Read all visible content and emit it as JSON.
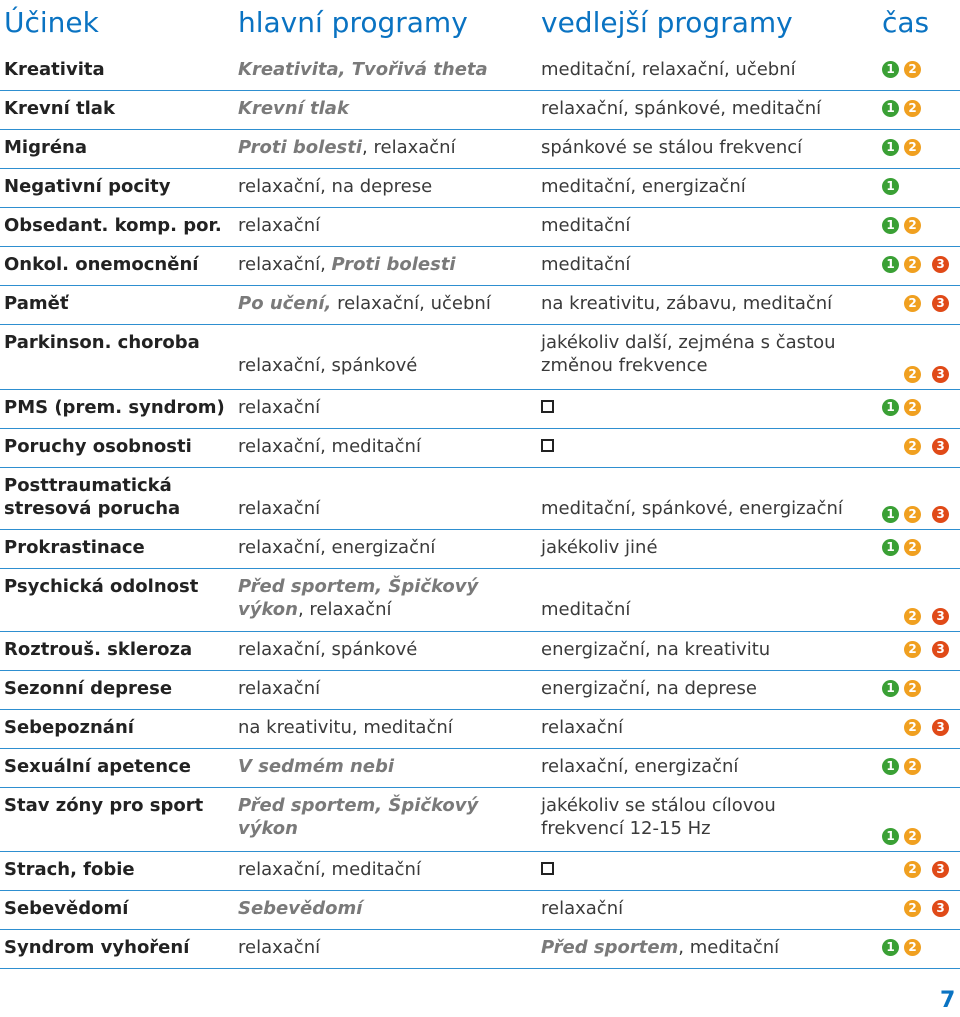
{
  "header": {
    "effect": "Účinek",
    "main": "hlavní programy",
    "side": "vedlejší programy",
    "time": "čas"
  },
  "badge_colors": {
    "1": "#3aa035",
    "2": "#f0a020",
    "3": "#e04a18"
  },
  "rows": [
    {
      "effect": [
        "Kreativita"
      ],
      "main": [
        [
          [
            "Kreativita, Tvořivá theta",
            "it"
          ]
        ]
      ],
      "side": [
        [
          [
            "meditační, relaxační, učební",
            "txt"
          ]
        ]
      ],
      "badges": [
        "1",
        "2"
      ]
    },
    {
      "effect": [
        "Krevní tlak"
      ],
      "main": [
        [
          [
            "Krevní tlak",
            "it"
          ]
        ]
      ],
      "side": [
        [
          [
            "relaxační, spánkové, meditační",
            "txt"
          ]
        ]
      ],
      "badges": [
        "1",
        "2"
      ]
    },
    {
      "effect": [
        "Migréna"
      ],
      "main": [
        [
          [
            "Proti bolesti",
            "it"
          ],
          [
            ", relaxační",
            "txt"
          ]
        ]
      ],
      "side": [
        [
          [
            "spánkové se stálou frekvencí",
            "txt"
          ]
        ]
      ],
      "badges": [
        "1",
        "2"
      ]
    },
    {
      "effect": [
        "Negativní pocity"
      ],
      "main": [
        [
          [
            "relaxační, na deprese",
            "txt"
          ]
        ]
      ],
      "side": [
        [
          [
            "meditační, energizační",
            "txt"
          ]
        ]
      ],
      "badges": [
        "1"
      ]
    },
    {
      "effect": [
        "Obsedant. komp. por."
      ],
      "main": [
        [
          [
            "relaxační",
            "txt"
          ]
        ]
      ],
      "side": [
        [
          [
            "meditační",
            "txt"
          ]
        ]
      ],
      "badges": [
        "1",
        "2"
      ]
    },
    {
      "effect": [
        "Onkol. onemocnění"
      ],
      "main": [
        [
          [
            "relaxační, ",
            "txt"
          ],
          [
            "Proti bolesti",
            "it"
          ]
        ]
      ],
      "side": [
        [
          [
            "meditační",
            "txt"
          ]
        ]
      ],
      "badges": [
        "1",
        "2",
        "3"
      ]
    },
    {
      "effect": [
        "Paměť"
      ],
      "main": [
        [
          [
            "Po učení,",
            "it"
          ],
          [
            " relaxační, učební",
            "txt"
          ]
        ]
      ],
      "side": [
        [
          [
            "na kreativitu, zábavu, meditační",
            "txt"
          ]
        ]
      ],
      "badges": [
        "2",
        "3"
      ]
    },
    {
      "effect": [
        "Parkinson. choroba"
      ],
      "main": [
        [
          [
            "relaxační, spánkové",
            "txt"
          ]
        ]
      ],
      "side": [
        [
          [
            "jakékoliv další, zejména s častou",
            "txt"
          ]
        ],
        [
          [
            "změnou frekvence",
            "txt"
          ]
        ]
      ],
      "badges": [
        "2",
        "3"
      ]
    },
    {
      "effect": [
        "PMS (prem. syndrom)"
      ],
      "main": [
        [
          [
            "relaxační",
            "txt"
          ]
        ]
      ],
      "side": [
        [
          [
            "☐",
            "box"
          ]
        ]
      ],
      "badges": [
        "1",
        "2"
      ]
    },
    {
      "effect": [
        "Poruchy osobnosti"
      ],
      "main": [
        [
          [
            "relaxační, meditační",
            "txt"
          ]
        ]
      ],
      "side": [
        [
          [
            "☐",
            "box"
          ]
        ]
      ],
      "badges": [
        "2",
        "3"
      ]
    },
    {
      "effect": [
        "Posttraumatická",
        "stresová porucha"
      ],
      "main": [
        [
          [
            "relaxační",
            "txt"
          ]
        ]
      ],
      "side": [
        [
          [
            "meditační, spánkové, energizační",
            "txt"
          ]
        ]
      ],
      "badges": [
        "1",
        "2",
        "3"
      ]
    },
    {
      "effect": [
        "Prokrastinace"
      ],
      "main": [
        [
          [
            "relaxační, energizační",
            "txt"
          ]
        ]
      ],
      "side": [
        [
          [
            "jakékoliv jiné",
            "txt"
          ]
        ]
      ],
      "badges": [
        "1",
        "2"
      ]
    },
    {
      "effect": [
        "Psychická odolnost"
      ],
      "main": [
        [
          [
            "Před sportem, Špičkový",
            "it"
          ]
        ],
        [
          [
            "výkon",
            "it"
          ],
          [
            ", relaxační",
            "txt"
          ]
        ]
      ],
      "side": [
        [
          [
            "meditační",
            "txt"
          ]
        ]
      ],
      "badges": [
        "2",
        "3"
      ]
    },
    {
      "effect": [
        "Roztrouš. skleroza"
      ],
      "main": [
        [
          [
            "relaxační, spánkové",
            "txt"
          ]
        ]
      ],
      "side": [
        [
          [
            "energizační, na kreativitu",
            "txt"
          ]
        ]
      ],
      "badges": [
        "2",
        "3"
      ]
    },
    {
      "effect": [
        "Sezonní deprese"
      ],
      "main": [
        [
          [
            "relaxační",
            "txt"
          ]
        ]
      ],
      "side": [
        [
          [
            "energizační, na deprese",
            "txt"
          ]
        ]
      ],
      "badges": [
        "1",
        "2"
      ]
    },
    {
      "effect": [
        "Sebepoznání"
      ],
      "main": [
        [
          [
            "na kreativitu, meditační",
            "txt"
          ]
        ]
      ],
      "side": [
        [
          [
            "relaxační",
            "txt"
          ]
        ]
      ],
      "badges": [
        "2",
        "3"
      ]
    },
    {
      "effect": [
        "Sexuální apetence"
      ],
      "main": [
        [
          [
            "V sedmém nebi",
            "it"
          ]
        ]
      ],
      "side": [
        [
          [
            "relaxační, energizační",
            "txt"
          ]
        ]
      ],
      "badges": [
        "1",
        "2"
      ]
    },
    {
      "effect": [
        "Stav zóny pro sport"
      ],
      "main": [
        [
          [
            "Před sportem, Špičkový",
            "it"
          ]
        ],
        [
          [
            "výkon",
            "it"
          ]
        ]
      ],
      "side": [
        [
          [
            "jakékoliv se stálou cílovou",
            "txt"
          ]
        ],
        [
          [
            "frekvencí 12-15 Hz",
            "txt"
          ]
        ]
      ],
      "badges": [
        "1",
        "2"
      ]
    },
    {
      "effect": [
        "Strach, fobie"
      ],
      "main": [
        [
          [
            "relaxační, meditační",
            "txt"
          ]
        ]
      ],
      "side": [
        [
          [
            "☐",
            "box"
          ]
        ]
      ],
      "badges": [
        "2",
        "3"
      ]
    },
    {
      "effect": [
        "Sebevědomí"
      ],
      "main": [
        [
          [
            "Sebevědomí",
            "it"
          ]
        ]
      ],
      "side": [
        [
          [
            "relaxační",
            "txt"
          ]
        ]
      ],
      "badges": [
        "2",
        "3"
      ]
    },
    {
      "effect": [
        "Syndrom vyhoření"
      ],
      "main": [
        [
          [
            "relaxační",
            "txt"
          ]
        ]
      ],
      "side": [
        [
          [
            "Před sportem",
            "it"
          ],
          [
            ", meditační",
            "txt"
          ]
        ]
      ],
      "badges": [
        "1",
        "2"
      ]
    }
  ],
  "page_number": "7"
}
